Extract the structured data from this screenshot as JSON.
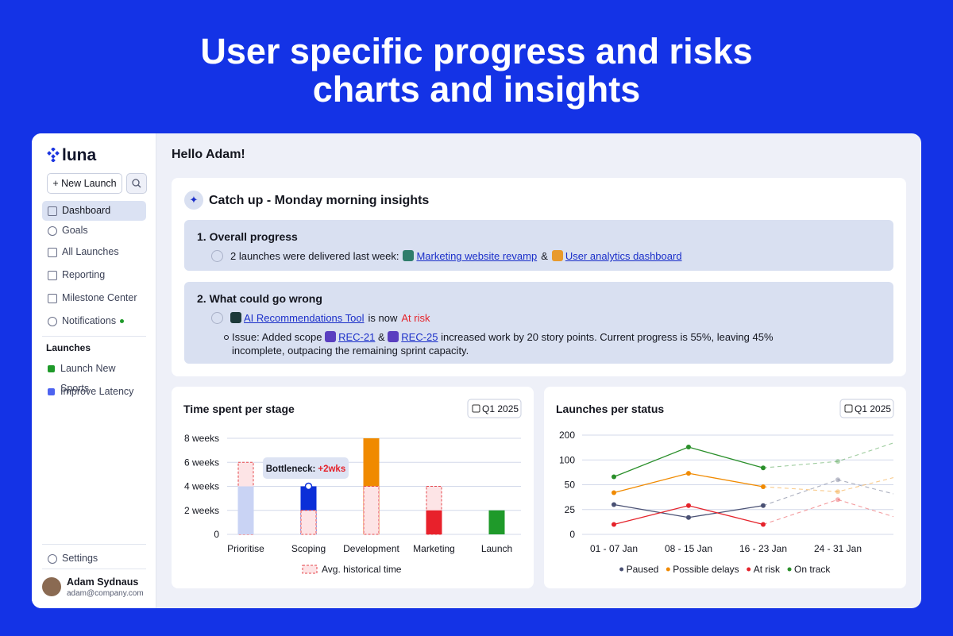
{
  "header": {
    "title_lines": [
      "User specific progress and risks",
      "charts and insights"
    ]
  },
  "sidebar": {
    "brand": "luna",
    "new_button": "+ New Launch",
    "nav": [
      "Dashboard",
      "Goals",
      "All Launches",
      "Reporting",
      "Milestone Center",
      "Notifications"
    ],
    "launches_heading": "Launches",
    "launches": [
      "Launch New Sports",
      "Improve Latency"
    ],
    "settings": "Settings",
    "user": {
      "name": "Adam Sydnaus",
      "email": "adam@company.com"
    }
  },
  "main": {
    "greeting": "Hello Adam!",
    "insights": {
      "title": "Catch up - Monday morning insights",
      "progress": {
        "heading": "1. Overall progress",
        "text": "2 launches were delivered last week:",
        "links": [
          "Marketing website revamp",
          "User analytics dashboard"
        ],
        "joiner": "&"
      },
      "risks": {
        "heading": "2. What could go wrong",
        "link": "AI Recommendations Tool",
        "text": "is now",
        "status": "At risk",
        "issue": {
          "prefix": "Issue: Added scope",
          "tickets": [
            "REC-21",
            "REC-25"
          ],
          "joiner": "&",
          "text": "increased work by 20 story points. Current progress is 55%, leaving 45% incomplete, outpacing the remaining sprint capacity."
        }
      }
    }
  },
  "chart_data": [
    {
      "type": "bar",
      "title": "Time spent per stage",
      "period": "Q1 2025",
      "categories": [
        "Prioritise",
        "Scoping",
        "Development",
        "Marketing",
        "Launch"
      ],
      "values": [
        4,
        4,
        8,
        2,
        2
      ],
      "colors": [
        "#c9d3f4",
        "#0b2fd8",
        "#f08a00",
        "#e8212b",
        "#1f9a2a"
      ],
      "historical": {
        "name": "Avg. historical time",
        "values": [
          6,
          2,
          4,
          4,
          null
        ],
        "color": "#e5484d",
        "fill": "#fde4e6"
      },
      "annotation": {
        "label": "Bottleneck:",
        "highlight": "+2wks"
      },
      "ylim": [
        0,
        8
      ],
      "yticks": [
        0,
        {
          "value": 2,
          "label": "2 weeks"
        },
        {
          "value": 4,
          "label": "4 weeks"
        },
        {
          "value": 6,
          "label": "6 weeks"
        },
        {
          "value": 8,
          "label": "8 weeks"
        }
      ],
      "grid": true
    },
    {
      "type": "line",
      "title": "Launches per status",
      "period": "Q1 2025",
      "categories": [
        "01 - 07 Jan",
        "08 - 15 Jan",
        "16 - 23 Jan",
        "24 - 31 Jan",
        null
      ],
      "series": [
        {
          "name": "Paused",
          "color": "#4a5174",
          "values": [
            30,
            17,
            29,
            null,
            null
          ],
          "forecast": [
            null,
            null,
            29,
            60,
            36
          ]
        },
        {
          "name": "Possible delays",
          "color": "#f08a00",
          "values": [
            42,
            73,
            48,
            null,
            null
          ],
          "forecast": [
            null,
            null,
            48,
            43,
            74
          ]
        },
        {
          "name": "At risk",
          "color": "#e5232b",
          "values": [
            10,
            29,
            10,
            null,
            null
          ],
          "forecast": [
            null,
            null,
            10,
            35,
            12
          ]
        },
        {
          "name": "On track",
          "color": "#2a8f2a",
          "values": [
            66,
            152,
            84,
            null,
            null
          ],
          "forecast": [
            null,
            null,
            84,
            97,
            194
          ]
        }
      ],
      "ylim": [
        0,
        200
      ],
      "yticks": [
        0,
        25,
        50,
        100,
        200
      ],
      "yscale": "tick-spaced",
      "grid": true
    }
  ]
}
